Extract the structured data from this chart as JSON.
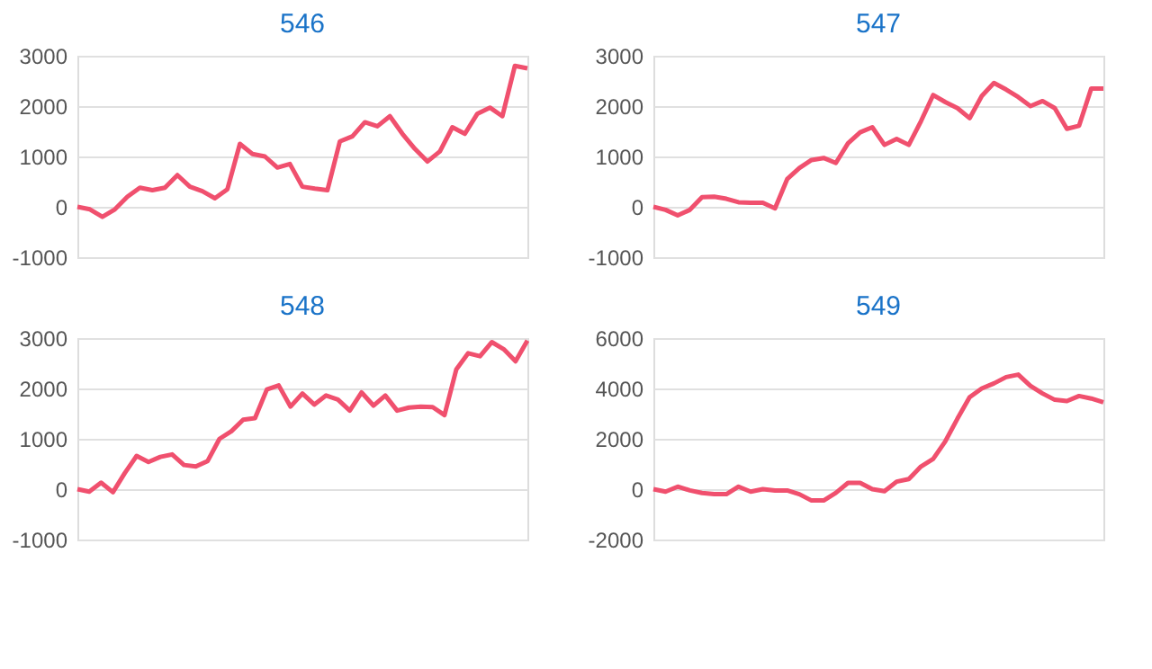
{
  "chart_data": [
    {
      "type": "line",
      "title": "546",
      "categories": [
        null,
        null,
        null,
        null,
        null,
        null,
        null,
        null,
        null,
        null,
        null,
        null,
        null,
        null,
        null,
        null,
        null,
        null,
        null,
        null,
        null,
        null,
        null,
        null,
        null,
        null,
        null,
        null,
        null,
        null,
        null,
        null,
        null,
        null,
        null,
        null,
        null
      ],
      "series": [
        {
          "color": "#f0506e",
          "values": [
            0,
            -50,
            -200,
            -50,
            200,
            380,
            330,
            380,
            630,
            400,
            310,
            170,
            350,
            1250,
            1050,
            1000,
            780,
            850,
            400,
            360,
            330,
            1300,
            1400,
            1680,
            1600,
            1800,
            1450,
            1150,
            900,
            1100,
            1580,
            1450,
            1850,
            1970,
            1800,
            2800,
            2750
          ]
        }
      ],
      "ylim": [
        -1000,
        3000
      ],
      "yticks": [
        -1000,
        0,
        1000,
        2000,
        3000
      ],
      "grid": "y",
      "tick_labels": "y",
      "marker": "none",
      "line_style": "solid"
    },
    {
      "type": "line",
      "title": "547",
      "categories": [
        null,
        null,
        null,
        null,
        null,
        null,
        null,
        null,
        null,
        null,
        null,
        null,
        null,
        null,
        null,
        null,
        null,
        null,
        null,
        null,
        null,
        null,
        null,
        null,
        null,
        null,
        null,
        null,
        null,
        null,
        null,
        null,
        null,
        null,
        null,
        null,
        null,
        null
      ],
      "series": [
        {
          "color": "#f0506e",
          "values": [
            0,
            -60,
            -170,
            -60,
            190,
            200,
            160,
            90,
            80,
            80,
            -30,
            550,
            770,
            930,
            970,
            870,
            1260,
            1480,
            1580,
            1230,
            1350,
            1230,
            1700,
            2220,
            2080,
            1960,
            1760,
            2200,
            2460,
            2330,
            2180,
            2000,
            2100,
            1960,
            1550,
            1610,
            2350,
            2350
          ]
        }
      ],
      "ylim": [
        -1000,
        3000
      ],
      "yticks": [
        -1000,
        0,
        1000,
        2000,
        3000
      ],
      "grid": "y",
      "tick_labels": "y",
      "marker": "none",
      "line_style": "solid"
    },
    {
      "type": "line",
      "title": "548",
      "categories": [
        null,
        null,
        null,
        null,
        null,
        null,
        null,
        null,
        null,
        null,
        null,
        null,
        null,
        null,
        null,
        null,
        null,
        null,
        null,
        null,
        null,
        null,
        null,
        null,
        null,
        null,
        null,
        null,
        null,
        null,
        null,
        null,
        null,
        null,
        null,
        null,
        null,
        null,
        null
      ],
      "series": [
        {
          "color": "#f0506e",
          "values": [
            0,
            -50,
            130,
            -60,
            320,
            660,
            540,
            640,
            690,
            480,
            450,
            560,
            1000,
            1150,
            1380,
            1410,
            1980,
            2060,
            1640,
            1900,
            1680,
            1860,
            1780,
            1560,
            1920,
            1660,
            1860,
            1560,
            1620,
            1640,
            1630,
            1470,
            2380,
            2700,
            2640,
            2920,
            2780,
            2540,
            2950
          ]
        }
      ],
      "ylim": [
        -1000,
        3000
      ],
      "yticks": [
        -1000,
        0,
        1000,
        2000,
        3000
      ],
      "grid": "y",
      "tick_labels": "y",
      "marker": "none",
      "line_style": "solid"
    },
    {
      "type": "line",
      "title": "549",
      "categories": [
        null,
        null,
        null,
        null,
        null,
        null,
        null,
        null,
        null,
        null,
        null,
        null,
        null,
        null,
        null,
        null,
        null,
        null,
        null,
        null,
        null,
        null,
        null,
        null,
        null,
        null,
        null,
        null,
        null,
        null,
        null,
        null,
        null,
        null,
        null,
        null,
        null,
        null
      ],
      "series": [
        {
          "color": "#f0506e",
          "values": [
            0,
            -100,
            100,
            -50,
            -150,
            -200,
            -200,
            100,
            -100,
            0,
            -50,
            -50,
            -200,
            -450,
            -450,
            -150,
            250,
            250,
            0,
            -80,
            300,
            400,
            900,
            1200,
            1900,
            2800,
            3650,
            4000,
            4200,
            4450,
            4550,
            4100,
            3800,
            3550,
            3500,
            3700,
            3600,
            3450
          ]
        }
      ],
      "ylim": [
        -2000,
        6000
      ],
      "yticks": [
        -2000,
        0,
        2000,
        4000,
        6000
      ],
      "grid": "y",
      "tick_labels": "y",
      "marker": "none",
      "line_style": "solid"
    }
  ]
}
